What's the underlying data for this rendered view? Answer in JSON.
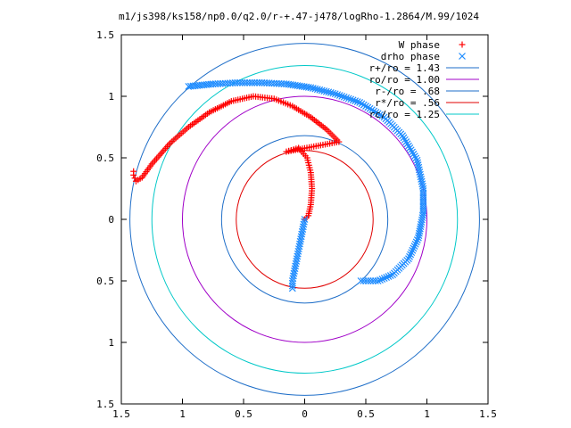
{
  "chart_data": {
    "type": "scatter",
    "title": "m1/js398/ks158/np0.0/q2.0/r-+.47-j478/logRho-1.2864/M.99/1024",
    "xlim": [
      -1.5,
      1.5
    ],
    "ylim": [
      -1.5,
      1.5
    ],
    "xticks": [
      -1.5,
      -1,
      -0.5,
      0,
      0.5,
      1,
      1.5
    ],
    "yticks": [
      -1.5,
      -1,
      -0.5,
      0,
      0.5,
      1,
      1.5
    ],
    "xtick_labels": [
      "1.5",
      "1",
      "0.5",
      "0",
      "0.5",
      "1",
      "1.5"
    ],
    "ytick_labels": [
      "1.5",
      "1",
      "0.5",
      "0",
      "0.5",
      "1",
      "1.5"
    ],
    "grid": false,
    "legend_position": "top-right",
    "series": [
      {
        "name": "W phase",
        "marker": "+",
        "color": "#ff0000",
        "points": [
          [
            -1.4,
            0.39
          ],
          [
            -1.4,
            0.36
          ],
          [
            -1.38,
            0.31
          ],
          [
            -1.33,
            0.34
          ],
          [
            -1.25,
            0.45
          ],
          [
            -1.1,
            0.62
          ],
          [
            -0.95,
            0.75
          ],
          [
            -0.78,
            0.87
          ],
          [
            -0.6,
            0.96
          ],
          [
            -0.42,
            1.0
          ],
          [
            -0.25,
            0.98
          ],
          [
            -0.1,
            0.92
          ],
          [
            0.05,
            0.83
          ],
          [
            0.18,
            0.73
          ],
          [
            0.28,
            0.63
          ],
          [
            -0.15,
            0.55
          ],
          [
            -0.05,
            0.58
          ],
          [
            0.02,
            0.5
          ],
          [
            0.05,
            0.38
          ],
          [
            0.06,
            0.25
          ],
          [
            0.05,
            0.12
          ],
          [
            0.03,
            0.03
          ],
          [
            0.0,
            0.0
          ]
        ]
      },
      {
        "name": "drho phase",
        "marker": "x",
        "color": "#1e8cff",
        "points": [
          [
            -0.95,
            1.08
          ],
          [
            -0.75,
            1.1
          ],
          [
            -0.55,
            1.11
          ],
          [
            -0.35,
            1.11
          ],
          [
            -0.15,
            1.1
          ],
          [
            0.05,
            1.07
          ],
          [
            0.25,
            1.02
          ],
          [
            0.45,
            0.95
          ],
          [
            0.65,
            0.83
          ],
          [
            0.8,
            0.68
          ],
          [
            0.92,
            0.48
          ],
          [
            0.97,
            0.25
          ],
          [
            0.97,
            0.05
          ],
          [
            0.93,
            -0.15
          ],
          [
            0.85,
            -0.32
          ],
          [
            0.72,
            -0.45
          ],
          [
            0.6,
            -0.5
          ],
          [
            0.46,
            -0.5
          ],
          [
            0.0,
            0.0
          ],
          [
            -0.02,
            -0.1
          ],
          [
            -0.04,
            -0.2
          ],
          [
            -0.06,
            -0.3
          ],
          [
            -0.08,
            -0.4
          ],
          [
            -0.1,
            -0.5
          ],
          [
            -0.1,
            -0.56
          ]
        ]
      },
      {
        "name": "r+/ro = 1.43",
        "type": "circle",
        "radius": 1.43,
        "color": "#1e6ec8"
      },
      {
        "name": "ro/ro = 1.00",
        "type": "circle",
        "radius": 1.0,
        "color": "#a000c8"
      },
      {
        "name": "r-/ro = .68",
        "type": "circle",
        "radius": 0.68,
        "color": "#1e6ec8"
      },
      {
        "name": "r*/ro = .56",
        "type": "circle",
        "radius": 0.56,
        "color": "#e00000"
      },
      {
        "name": "rc/ro = 1.25",
        "type": "circle",
        "radius": 1.25,
        "color": "#00c8c8"
      }
    ]
  }
}
